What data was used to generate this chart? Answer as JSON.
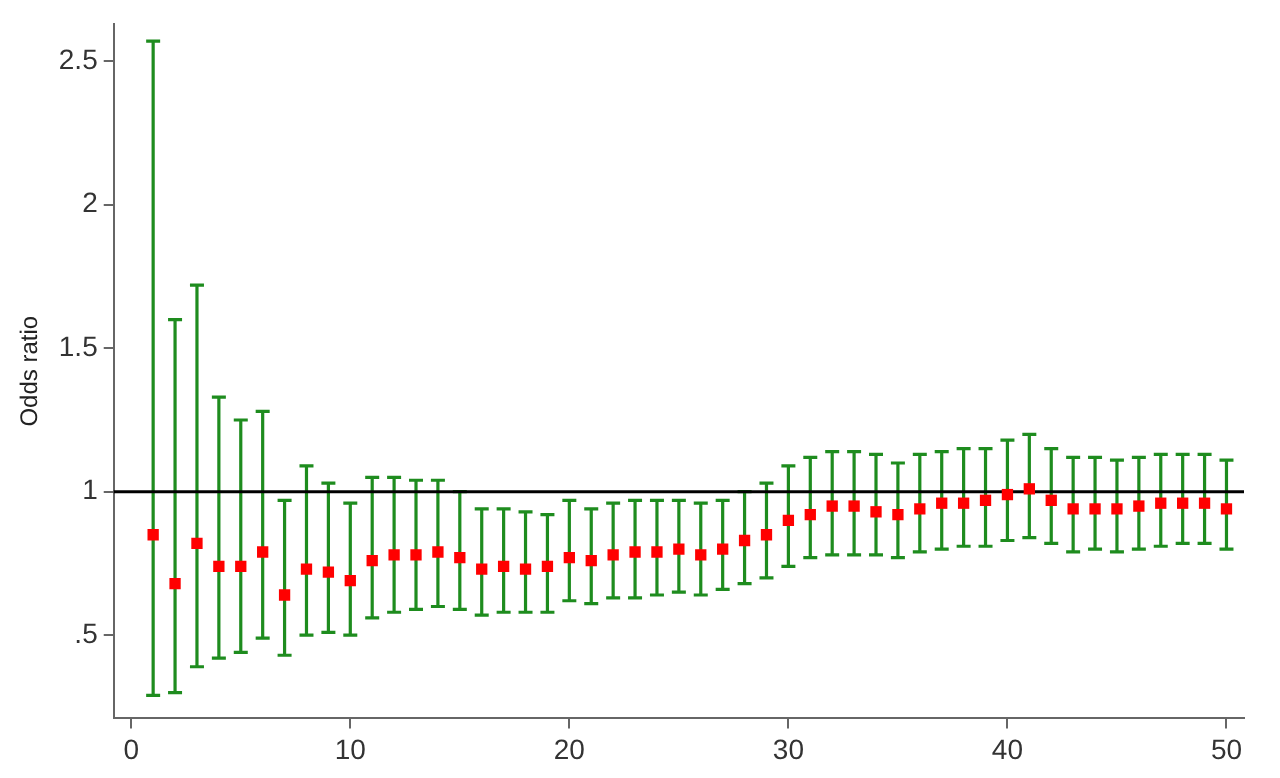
{
  "chart_data": {
    "type": "scatter",
    "ylabel": "Odds ratio",
    "marker": "square",
    "grid": false,
    "legend": false,
    "x": [
      1,
      2,
      3,
      4,
      5,
      6,
      7,
      8,
      9,
      10,
      11,
      12,
      13,
      14,
      15,
      16,
      17,
      18,
      19,
      20,
      21,
      22,
      23,
      24,
      25,
      26,
      27,
      28,
      29,
      30,
      31,
      32,
      33,
      34,
      35,
      36,
      37,
      38,
      39,
      40,
      41,
      42,
      43,
      44,
      45,
      46,
      47,
      48,
      49,
      50
    ],
    "series": [
      {
        "color": "#ff0000",
        "values": [
          0.85,
          0.68,
          0.82,
          0.74,
          0.74,
          0.79,
          0.64,
          0.73,
          0.72,
          0.69,
          0.76,
          0.78,
          0.78,
          0.79,
          0.77,
          0.73,
          0.74,
          0.73,
          0.74,
          0.77,
          0.76,
          0.78,
          0.79,
          0.79,
          0.8,
          0.78,
          0.8,
          0.83,
          0.85,
          0.9,
          0.92,
          0.95,
          0.95,
          0.93,
          0.92,
          0.94,
          0.96,
          0.96,
          0.97,
          0.99,
          1.01,
          0.97,
          0.94,
          0.94,
          0.94,
          0.95,
          0.96,
          0.96,
          0.96,
          0.94
        ],
        "errors": [
          [
            0.29,
            2.57
          ],
          [
            0.3,
            1.6
          ],
          [
            0.39,
            1.72
          ],
          [
            0.42,
            1.33
          ],
          [
            0.44,
            1.25
          ],
          [
            0.49,
            1.28
          ],
          [
            0.43,
            0.97
          ],
          [
            0.5,
            1.09
          ],
          [
            0.51,
            1.03
          ],
          [
            0.5,
            0.96
          ],
          [
            0.56,
            1.05
          ],
          [
            0.58,
            1.05
          ],
          [
            0.59,
            1.04
          ],
          [
            0.6,
            1.04
          ],
          [
            0.59,
            1.0
          ],
          [
            0.57,
            0.94
          ],
          [
            0.58,
            0.94
          ],
          [
            0.58,
            0.93
          ],
          [
            0.58,
            0.92
          ],
          [
            0.62,
            0.97
          ],
          [
            0.61,
            0.94
          ],
          [
            0.63,
            0.96
          ],
          [
            0.63,
            0.97
          ],
          [
            0.64,
            0.97
          ],
          [
            0.65,
            0.97
          ],
          [
            0.64,
            0.96
          ],
          [
            0.66,
            0.97
          ],
          [
            0.68,
            1.0
          ],
          [
            0.7,
            1.03
          ],
          [
            0.74,
            1.09
          ],
          [
            0.77,
            1.12
          ],
          [
            0.78,
            1.14
          ],
          [
            0.78,
            1.14
          ],
          [
            0.78,
            1.13
          ],
          [
            0.77,
            1.1
          ],
          [
            0.79,
            1.13
          ],
          [
            0.8,
            1.14
          ],
          [
            0.81,
            1.15
          ],
          [
            0.81,
            1.15
          ],
          [
            0.83,
            1.18
          ],
          [
            0.84,
            1.2
          ],
          [
            0.82,
            1.15
          ],
          [
            0.79,
            1.12
          ],
          [
            0.8,
            1.12
          ],
          [
            0.79,
            1.11
          ],
          [
            0.8,
            1.12
          ],
          [
            0.81,
            1.13
          ],
          [
            0.82,
            1.13
          ],
          [
            0.82,
            1.13
          ],
          [
            0.8,
            1.11
          ]
        ]
      }
    ],
    "xlim": [
      -0.8,
      50.8
    ],
    "xticks": [
      0,
      10,
      20,
      30,
      40,
      50
    ],
    "ylim": [
      0.21,
      2.63
    ],
    "yticks": [
      {
        "value": 0.5,
        "label": ".5"
      },
      1,
      1.5,
      2,
      2.5
    ],
    "ref_lines": [
      {
        "axis": "y",
        "value": 1,
        "color": "#000000"
      }
    ]
  }
}
